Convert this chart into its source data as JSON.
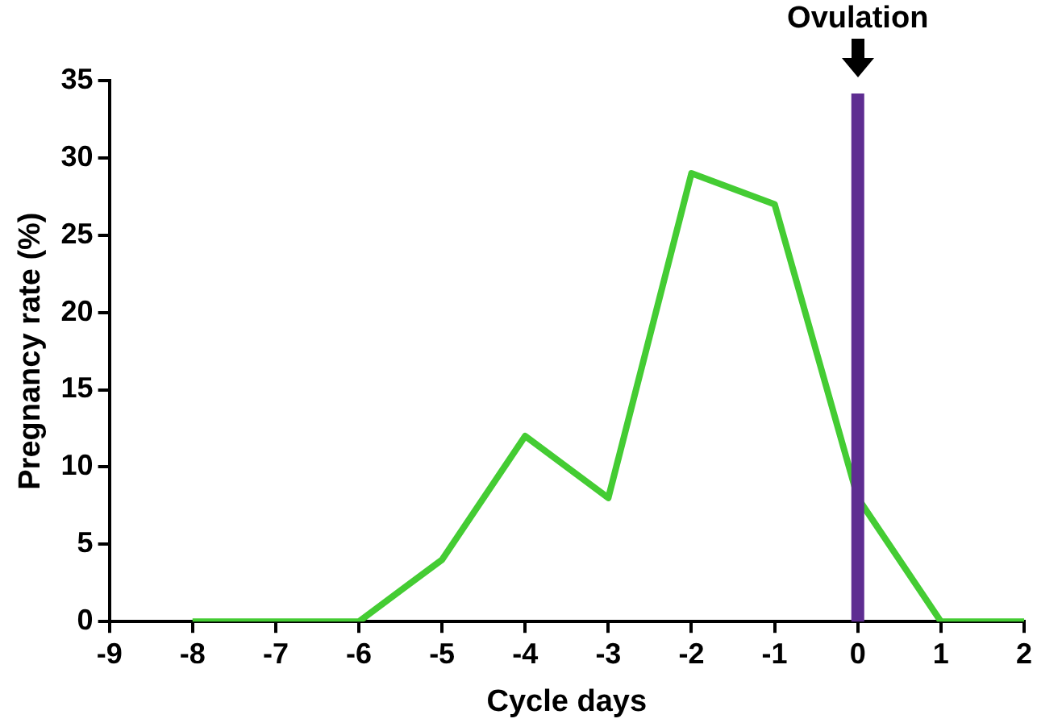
{
  "chart_data": {
    "type": "line",
    "xlabel": "Cycle days",
    "ylabel": "Pregnancy rate (%)",
    "x": [
      -8,
      -7,
      -6,
      -5,
      -4,
      -3,
      -2,
      -1,
      0,
      1,
      2
    ],
    "series": [
      {
        "color": "#44cc33",
        "values": [
          0,
          0,
          0,
          4,
          12,
          8,
          29,
          27,
          8,
          0,
          0
        ]
      }
    ],
    "xlim": [
      -9,
      2
    ],
    "xticks": [
      -9,
      -8,
      -7,
      -6,
      -5,
      -4,
      -3,
      -2,
      -1,
      0,
      1,
      2
    ],
    "ylim": [
      0,
      35
    ],
    "yticks": [
      0,
      5,
      10,
      15,
      20,
      25,
      30,
      35
    ],
    "ref_lines": [
      {
        "axis": "x",
        "value": 0,
        "label": "Ovulation",
        "color": "#5e2d91"
      }
    ],
    "grid": false,
    "legend": false,
    "marker": "none",
    "line_style": "solid"
  }
}
